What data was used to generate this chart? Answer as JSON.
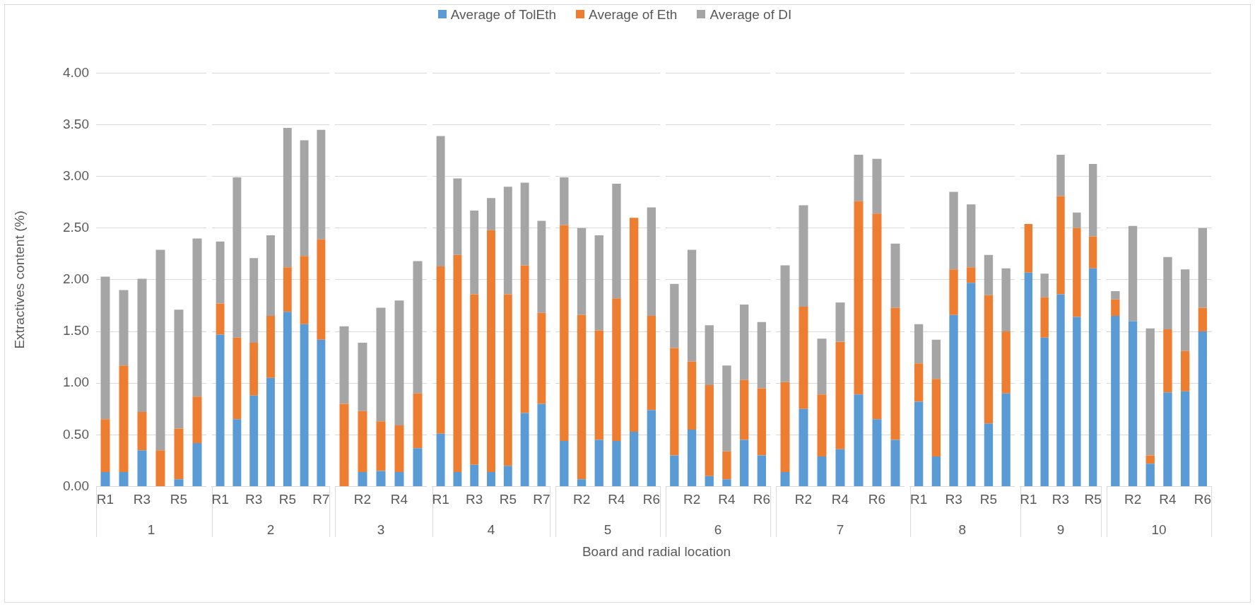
{
  "chart_data": [
    {
      "type": "bar",
      "stacked": true,
      "grid": "y",
      "legend": "top",
      "ylabel": "Extractives content (%)",
      "xlabel": "1",
      "annotations": [
        "Board and radial location"
      ],
      "ylim": [
        0,
        4
      ],
      "yticks": [
        {
          "value": 0,
          "label": "0.00"
        },
        {
          "value": 0.5,
          "label": "0.50"
        },
        {
          "value": 1,
          "label": "1.00"
        },
        {
          "value": 1.5,
          "label": "1.50"
        },
        {
          "value": 2,
          "label": "2.00"
        },
        {
          "value": 2.5,
          "label": "2.50"
        },
        {
          "value": 3,
          "label": "3.00"
        },
        {
          "value": 3.5,
          "label": "3.50"
        },
        {
          "value": 4,
          "label": "4.00"
        }
      ],
      "categories": [
        "R1",
        null,
        "R3",
        null,
        "R5",
        null
      ],
      "series": [
        {
          "name": "Average of TolEth",
          "color": "#5b9bd5",
          "values": [
            0.14,
            0.14,
            0.35,
            0,
            0.07,
            0.42
          ]
        },
        {
          "name": "Average of Eth",
          "color": "#ed7d31",
          "values": [
            0.51,
            1.03,
            0.37,
            0.35,
            0.49,
            0.45
          ]
        },
        {
          "name": "Average of DI",
          "color": "#a5a5a5",
          "values": [
            1.38,
            0.73,
            1.29,
            1.94,
            1.15,
            1.53
          ]
        }
      ]
    },
    {
      "type": "bar",
      "stacked": true,
      "grid": "y",
      "tick_labels": "x",
      "xlabel": "2",
      "ylim": [
        0,
        4
      ],
      "yticks": [
        0,
        0.5,
        1,
        1.5,
        2,
        2.5,
        3,
        3.5,
        4
      ],
      "categories": [
        "R1",
        null,
        "R3",
        null,
        "R5",
        null,
        "R7"
      ],
      "series": [
        {
          "color": "#5b9bd5",
          "values": [
            1.47,
            0.65,
            0.88,
            1.05,
            1.69,
            1.57,
            1.42
          ]
        },
        {
          "color": "#ed7d31",
          "values": [
            0.3,
            0.79,
            0.51,
            0.6,
            0.43,
            0.66,
            0.97
          ]
        },
        {
          "color": "#a5a5a5",
          "values": [
            0.6,
            1.55,
            0.82,
            0.78,
            1.35,
            1.12,
            1.06
          ]
        }
      ]
    },
    {
      "type": "bar",
      "stacked": true,
      "grid": "y",
      "tick_labels": "x",
      "xlabel": "3",
      "ylim": [
        0,
        4
      ],
      "yticks": [
        0,
        0.5,
        1,
        1.5,
        2,
        2.5,
        3,
        3.5,
        4
      ],
      "categories": [
        null,
        "R2",
        null,
        "R4",
        null
      ],
      "series": [
        {
          "color": "#5b9bd5",
          "values": [
            0,
            0.14,
            0.15,
            0.14,
            0.37
          ]
        },
        {
          "color": "#ed7d31",
          "values": [
            0.8,
            0.59,
            0.48,
            0.45,
            0.53
          ]
        },
        {
          "color": "#a5a5a5",
          "values": [
            0.75,
            0.66,
            1.1,
            1.21,
            1.28
          ]
        }
      ]
    },
    {
      "type": "bar",
      "stacked": true,
      "grid": "y",
      "tick_labels": "x",
      "xlabel": "4",
      "ylim": [
        0,
        4
      ],
      "yticks": [
        0,
        0.5,
        1,
        1.5,
        2,
        2.5,
        3,
        3.5,
        4
      ],
      "categories": [
        "R1",
        null,
        "R3",
        null,
        "R5",
        null,
        "R7"
      ],
      "series": [
        {
          "color": "#5b9bd5",
          "values": [
            0.51,
            0.14,
            0.21,
            0.14,
            0.2,
            0.71,
            0.8
          ]
        },
        {
          "color": "#ed7d31",
          "values": [
            1.62,
            2.1,
            1.65,
            2.34,
            1.66,
            1.43,
            0.88
          ]
        },
        {
          "color": "#a5a5a5",
          "values": [
            1.26,
            0.74,
            0.81,
            0.31,
            1.04,
            0.8,
            0.89
          ]
        }
      ]
    },
    {
      "type": "bar",
      "stacked": true,
      "grid": "y",
      "tick_labels": "x",
      "xlabel": "5",
      "ylim": [
        0,
        4
      ],
      "yticks": [
        0,
        0.5,
        1,
        1.5,
        2,
        2.5,
        3,
        3.5,
        4
      ],
      "categories": [
        null,
        "R2",
        null,
        "R4",
        null,
        "R6"
      ],
      "series": [
        {
          "color": "#5b9bd5",
          "values": [
            0.44,
            0.07,
            0.45,
            0.44,
            0.53,
            0.74
          ]
        },
        {
          "color": "#ed7d31",
          "values": [
            2.09,
            1.59,
            1.06,
            1.38,
            2.07,
            0.91
          ]
        },
        {
          "color": "#a5a5a5",
          "values": [
            0.46,
            0.84,
            0.92,
            1.11,
            0,
            1.05
          ]
        }
      ]
    },
    {
      "type": "bar",
      "stacked": true,
      "grid": "y",
      "tick_labels": "x",
      "xlabel": "6",
      "ylim": [
        0,
        4
      ],
      "yticks": [
        0,
        0.5,
        1,
        1.5,
        2,
        2.5,
        3,
        3.5,
        4
      ],
      "categories": [
        null,
        "R2",
        null,
        "R4",
        null,
        "R6"
      ],
      "series": [
        {
          "color": "#5b9bd5",
          "values": [
            0.3,
            0.55,
            0.1,
            0.07,
            0.45,
            0.3
          ]
        },
        {
          "color": "#ed7d31",
          "values": [
            1.04,
            0.66,
            0.88,
            0.27,
            0.58,
            0.65
          ]
        },
        {
          "color": "#a5a5a5",
          "values": [
            0.62,
            1.08,
            0.58,
            0.83,
            0.73,
            0.64
          ]
        }
      ]
    },
    {
      "type": "bar",
      "stacked": true,
      "grid": "y",
      "tick_labels": "x",
      "xlabel": "7",
      "ylim": [
        0,
        4
      ],
      "yticks": [
        0,
        0.5,
        1,
        1.5,
        2,
        2.5,
        3,
        3.5,
        4
      ],
      "categories": [
        null,
        "R2",
        null,
        "R4",
        null,
        "R6",
        null
      ],
      "series": [
        {
          "color": "#5b9bd5",
          "values": [
            0.14,
            0.75,
            0.29,
            0.36,
            0.89,
            0.65,
            0.45
          ]
        },
        {
          "color": "#ed7d31",
          "values": [
            0.87,
            0.99,
            0.6,
            1.04,
            1.87,
            1.99,
            1.28
          ]
        },
        {
          "color": "#a5a5a5",
          "values": [
            1.13,
            0.98,
            0.54,
            0.38,
            0.45,
            0.53,
            0.62
          ]
        }
      ]
    },
    {
      "type": "bar",
      "stacked": true,
      "grid": "y",
      "tick_labels": "x",
      "xlabel": "8",
      "ylim": [
        0,
        4
      ],
      "yticks": [
        0,
        0.5,
        1,
        1.5,
        2,
        2.5,
        3,
        3.5,
        4
      ],
      "categories": [
        "R1",
        null,
        "R3",
        null,
        "R5",
        null
      ],
      "series": [
        {
          "color": "#5b9bd5",
          "values": [
            0.82,
            0.29,
            1.66,
            1.97,
            0.61,
            0.9
          ]
        },
        {
          "color": "#ed7d31",
          "values": [
            0.37,
            0.75,
            0.44,
            0.15,
            1.24,
            0.6
          ]
        },
        {
          "color": "#a5a5a5",
          "values": [
            0.38,
            0.38,
            0.75,
            0.61,
            0.39,
            0.61
          ]
        }
      ]
    },
    {
      "type": "bar",
      "stacked": true,
      "grid": "y",
      "tick_labels": "x",
      "xlabel": "9",
      "ylim": [
        0,
        4
      ],
      "yticks": [
        0,
        0.5,
        1,
        1.5,
        2,
        2.5,
        3,
        3.5,
        4
      ],
      "categories": [
        "R1",
        null,
        "R3",
        null,
        "R5"
      ],
      "series": [
        {
          "color": "#5b9bd5",
          "values": [
            2.07,
            1.44,
            1.86,
            1.64,
            2.11
          ]
        },
        {
          "color": "#ed7d31",
          "values": [
            0.47,
            0.39,
            0.95,
            0.86,
            0.31
          ]
        },
        {
          "color": "#a5a5a5",
          "values": [
            0,
            0.23,
            0.4,
            0.15,
            0.7
          ]
        }
      ]
    },
    {
      "type": "bar",
      "stacked": true,
      "grid": "y",
      "tick_labels": "x",
      "xlabel": "10",
      "ylim": [
        0,
        4
      ],
      "yticks": [
        0,
        0.5,
        1,
        1.5,
        2,
        2.5,
        3,
        3.5,
        4
      ],
      "categories": [
        null,
        "R2",
        null,
        "R4",
        null,
        "R6"
      ],
      "series": [
        {
          "color": "#5b9bd5",
          "values": [
            1.65,
            1.6,
            0.22,
            0.91,
            0.92,
            1.5
          ]
        },
        {
          "color": "#ed7d31",
          "values": [
            0.16,
            0,
            0.08,
            0.61,
            0.39,
            0.23
          ]
        },
        {
          "color": "#a5a5a5",
          "values": [
            0.08,
            0.92,
            1.23,
            0.7,
            0.79,
            0.77
          ]
        }
      ]
    }
  ]
}
